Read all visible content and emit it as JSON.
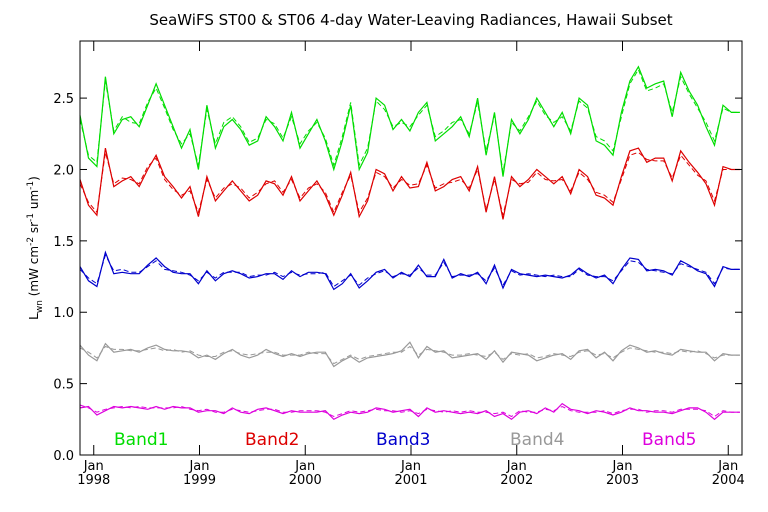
{
  "chart_data": {
    "type": "line",
    "title": "SeaWiFS ST00 & ST06 4-day Water-Leaving Radiances, Hawaii Subset",
    "ylabel": {
      "main": "L",
      "sub": "wn",
      "units_open": " (mW cm",
      "exp1": "-2",
      "mid": " sr",
      "exp2": "-1",
      "um": " um",
      "exp3": "-1",
      "units_close": ")"
    },
    "xlim": [
      1997.87,
      2004.13
    ],
    "ylim": [
      0.0,
      2.9
    ],
    "y_ticks": [
      {
        "v": 0.0,
        "label": "0.0"
      },
      {
        "v": 0.5,
        "label": "0.5"
      },
      {
        "v": 1.0,
        "label": "1.0"
      },
      {
        "v": 1.5,
        "label": "1.5"
      },
      {
        "v": 2.0,
        "label": "2.0"
      },
      {
        "v": 2.5,
        "label": "2.5"
      }
    ],
    "x_ticks": [
      {
        "v": 1998.0,
        "month": "Jan",
        "year": "1998"
      },
      {
        "v": 1999.0,
        "month": "Jan",
        "year": "1999"
      },
      {
        "v": 2000.0,
        "month": "Jan",
        "year": "2000"
      },
      {
        "v": 2001.0,
        "month": "Jan",
        "year": "2001"
      },
      {
        "v": 2002.0,
        "month": "Jan",
        "year": "2002"
      },
      {
        "v": 2003.0,
        "month": "Jan",
        "year": "2003"
      },
      {
        "v": 2004.0,
        "month": "Jan",
        "year": "2004"
      }
    ],
    "x": [
      1997.87,
      1997.95,
      1998.03,
      1998.11,
      1998.19,
      1998.27,
      1998.35,
      1998.43,
      1998.51,
      1998.59,
      1998.67,
      1998.75,
      1998.83,
      1998.91,
      1998.99,
      1999.07,
      1999.15,
      1999.23,
      1999.31,
      1999.39,
      1999.47,
      1999.55,
      1999.63,
      1999.71,
      1999.79,
      1999.87,
      1999.95,
      2000.03,
      2000.11,
      2000.19,
      2000.27,
      2000.35,
      2000.43,
      2000.51,
      2000.59,
      2000.67,
      2000.75,
      2000.83,
      2000.91,
      2000.99,
      2001.07,
      2001.15,
      2001.23,
      2001.31,
      2001.39,
      2001.47,
      2001.55,
      2001.63,
      2001.71,
      2001.79,
      2001.87,
      2001.95,
      2002.03,
      2002.11,
      2002.19,
      2002.27,
      2002.35,
      2002.43,
      2002.51,
      2002.59,
      2002.67,
      2002.75,
      2002.83,
      2002.91,
      2002.99,
      2003.07,
      2003.15,
      2003.23,
      2003.31,
      2003.39,
      2003.47,
      2003.55,
      2003.63,
      2003.71,
      2003.79,
      2003.87,
      2003.95,
      2004.03,
      2004.11
    ],
    "series": [
      {
        "name": "Band1",
        "color": "#00dd00",
        "st00": [
          2.38,
          2.08,
          2.02,
          2.65,
          2.25,
          2.35,
          2.37,
          2.3,
          2.45,
          2.6,
          2.45,
          2.3,
          2.15,
          2.28,
          2.0,
          2.45,
          2.15,
          2.3,
          2.35,
          2.28,
          2.17,
          2.2,
          2.37,
          2.3,
          2.2,
          2.4,
          2.15,
          2.25,
          2.35,
          2.2,
          2.0,
          2.2,
          2.45,
          2.0,
          2.12,
          2.5,
          2.45,
          2.28,
          2.35,
          2.27,
          2.4,
          2.47,
          2.2,
          2.25,
          2.3,
          2.37,
          2.23,
          2.5,
          2.1,
          2.4,
          1.95,
          2.35,
          2.25,
          2.35,
          2.5,
          2.4,
          2.3,
          2.4,
          2.25,
          2.5,
          2.45,
          2.2,
          2.17,
          2.1,
          2.4,
          2.62,
          2.72,
          2.57,
          2.6,
          2.62,
          2.37,
          2.68,
          2.55,
          2.45,
          2.3,
          2.17,
          2.45,
          2.4,
          2.4
        ],
        "st06": [
          2.35,
          2.1,
          2.05,
          2.62,
          2.27,
          2.37,
          2.33,
          2.32,
          2.47,
          2.57,
          2.43,
          2.28,
          2.18,
          2.25,
          2.03,
          2.42,
          2.18,
          2.33,
          2.37,
          2.3,
          2.19,
          2.22,
          2.35,
          2.32,
          2.22,
          2.37,
          2.18,
          2.27,
          2.33,
          2.22,
          2.03,
          2.23,
          2.47,
          2.03,
          2.15,
          2.48,
          2.42,
          2.3,
          2.33,
          2.3,
          2.38,
          2.45,
          2.23,
          2.27,
          2.33,
          2.35,
          2.25,
          2.47,
          2.13,
          2.38,
          1.98,
          2.33,
          2.27,
          2.37,
          2.48,
          2.38,
          2.33,
          2.37,
          2.27,
          2.48,
          2.43,
          2.23,
          2.2,
          2.13,
          2.37,
          2.6,
          2.7,
          2.55,
          2.57,
          2.6,
          2.4,
          2.65,
          2.53,
          2.43,
          2.33,
          2.2,
          2.43,
          2.4,
          2.4
        ]
      },
      {
        "name": "Band2",
        "color": "#dd0000",
        "st00": [
          1.93,
          1.75,
          1.68,
          2.15,
          1.88,
          1.92,
          1.95,
          1.88,
          2.0,
          2.1,
          1.95,
          1.88,
          1.8,
          1.88,
          1.67,
          1.95,
          1.78,
          1.85,
          1.92,
          1.85,
          1.78,
          1.82,
          1.92,
          1.9,
          1.82,
          1.95,
          1.78,
          1.85,
          1.92,
          1.82,
          1.68,
          1.82,
          1.98,
          1.67,
          1.78,
          2.0,
          1.97,
          1.85,
          1.95,
          1.87,
          1.88,
          2.05,
          1.85,
          1.88,
          1.93,
          1.95,
          1.85,
          2.02,
          1.7,
          1.95,
          1.65,
          1.95,
          1.88,
          1.93,
          2.0,
          1.95,
          1.9,
          1.95,
          1.83,
          2.0,
          1.95,
          1.82,
          1.8,
          1.75,
          1.95,
          2.13,
          2.15,
          2.05,
          2.08,
          2.08,
          1.92,
          2.13,
          2.05,
          1.98,
          1.9,
          1.75,
          2.02,
          2.0,
          2.0
        ],
        "st06": [
          1.9,
          1.77,
          1.7,
          2.12,
          1.9,
          1.94,
          1.93,
          1.9,
          2.02,
          2.08,
          1.93,
          1.86,
          1.82,
          1.85,
          1.7,
          1.93,
          1.8,
          1.87,
          1.9,
          1.87,
          1.8,
          1.84,
          1.9,
          1.92,
          1.84,
          1.93,
          1.8,
          1.87,
          1.9,
          1.84,
          1.7,
          1.84,
          1.96,
          1.7,
          1.8,
          1.98,
          1.95,
          1.87,
          1.93,
          1.89,
          1.9,
          2.03,
          1.87,
          1.9,
          1.91,
          1.93,
          1.87,
          2.0,
          1.72,
          1.93,
          1.68,
          1.93,
          1.9,
          1.91,
          1.98,
          1.93,
          1.92,
          1.93,
          1.85,
          1.98,
          1.93,
          1.84,
          1.82,
          1.77,
          1.93,
          2.1,
          2.12,
          2.07,
          2.06,
          2.06,
          1.94,
          2.1,
          2.03,
          1.96,
          1.92,
          1.78,
          2.0,
          2.0,
          2.0
        ]
      },
      {
        "name": "Band3",
        "color": "#0000cc",
        "st00": [
          1.32,
          1.22,
          1.18,
          1.42,
          1.27,
          1.28,
          1.27,
          1.27,
          1.33,
          1.38,
          1.32,
          1.28,
          1.27,
          1.27,
          1.2,
          1.29,
          1.22,
          1.27,
          1.29,
          1.27,
          1.24,
          1.25,
          1.27,
          1.27,
          1.23,
          1.29,
          1.25,
          1.28,
          1.28,
          1.27,
          1.16,
          1.2,
          1.27,
          1.17,
          1.22,
          1.28,
          1.3,
          1.24,
          1.28,
          1.25,
          1.33,
          1.25,
          1.25,
          1.37,
          1.24,
          1.27,
          1.25,
          1.28,
          1.2,
          1.33,
          1.17,
          1.3,
          1.27,
          1.26,
          1.25,
          1.26,
          1.25,
          1.24,
          1.26,
          1.31,
          1.27,
          1.24,
          1.26,
          1.2,
          1.3,
          1.38,
          1.37,
          1.29,
          1.3,
          1.29,
          1.26,
          1.36,
          1.33,
          1.29,
          1.27,
          1.18,
          1.32,
          1.3,
          1.3
        ],
        "st06": [
          1.3,
          1.24,
          1.2,
          1.4,
          1.29,
          1.3,
          1.28,
          1.28,
          1.32,
          1.36,
          1.3,
          1.29,
          1.28,
          1.26,
          1.22,
          1.28,
          1.24,
          1.28,
          1.28,
          1.28,
          1.25,
          1.26,
          1.26,
          1.28,
          1.25,
          1.28,
          1.26,
          1.27,
          1.27,
          1.28,
          1.18,
          1.22,
          1.26,
          1.19,
          1.24,
          1.27,
          1.29,
          1.25,
          1.27,
          1.26,
          1.31,
          1.26,
          1.26,
          1.35,
          1.25,
          1.26,
          1.26,
          1.27,
          1.22,
          1.31,
          1.19,
          1.29,
          1.26,
          1.27,
          1.26,
          1.25,
          1.26,
          1.25,
          1.25,
          1.3,
          1.26,
          1.25,
          1.25,
          1.22,
          1.29,
          1.36,
          1.35,
          1.3,
          1.29,
          1.28,
          1.27,
          1.34,
          1.32,
          1.3,
          1.28,
          1.2,
          1.31,
          1.3,
          1.3
        ]
      },
      {
        "name": "Band4",
        "color": "#999999",
        "st00": [
          0.77,
          0.7,
          0.66,
          0.78,
          0.72,
          0.73,
          0.74,
          0.72,
          0.75,
          0.77,
          0.74,
          0.73,
          0.73,
          0.72,
          0.68,
          0.7,
          0.67,
          0.71,
          0.74,
          0.7,
          0.68,
          0.7,
          0.74,
          0.71,
          0.69,
          0.71,
          0.69,
          0.71,
          0.72,
          0.72,
          0.62,
          0.66,
          0.69,
          0.65,
          0.68,
          0.69,
          0.7,
          0.71,
          0.73,
          0.79,
          0.68,
          0.76,
          0.72,
          0.73,
          0.68,
          0.69,
          0.7,
          0.71,
          0.67,
          0.73,
          0.65,
          0.72,
          0.71,
          0.7,
          0.66,
          0.68,
          0.7,
          0.71,
          0.67,
          0.73,
          0.74,
          0.68,
          0.72,
          0.66,
          0.73,
          0.77,
          0.75,
          0.72,
          0.73,
          0.71,
          0.7,
          0.74,
          0.73,
          0.72,
          0.72,
          0.66,
          0.71,
          0.7,
          0.7
        ],
        "st06": [
          0.75,
          0.72,
          0.68,
          0.76,
          0.74,
          0.74,
          0.73,
          0.73,
          0.74,
          0.75,
          0.73,
          0.74,
          0.72,
          0.73,
          0.7,
          0.69,
          0.69,
          0.72,
          0.73,
          0.71,
          0.7,
          0.71,
          0.72,
          0.72,
          0.7,
          0.7,
          0.7,
          0.72,
          0.71,
          0.71,
          0.64,
          0.67,
          0.7,
          0.67,
          0.69,
          0.7,
          0.71,
          0.72,
          0.72,
          0.76,
          0.7,
          0.74,
          0.73,
          0.72,
          0.7,
          0.7,
          0.71,
          0.7,
          0.69,
          0.72,
          0.67,
          0.71,
          0.7,
          0.71,
          0.68,
          0.69,
          0.71,
          0.7,
          0.69,
          0.72,
          0.73,
          0.7,
          0.71,
          0.68,
          0.72,
          0.75,
          0.74,
          0.73,
          0.72,
          0.72,
          0.71,
          0.73,
          0.72,
          0.73,
          0.71,
          0.68,
          0.7,
          0.7,
          0.7
        ]
      },
      {
        "name": "Band5",
        "color": "#dd00dd",
        "st00": [
          0.33,
          0.34,
          0.28,
          0.31,
          0.34,
          0.33,
          0.34,
          0.33,
          0.32,
          0.34,
          0.32,
          0.34,
          0.33,
          0.33,
          0.3,
          0.31,
          0.31,
          0.29,
          0.33,
          0.3,
          0.29,
          0.32,
          0.33,
          0.31,
          0.29,
          0.31,
          0.3,
          0.3,
          0.3,
          0.31,
          0.25,
          0.28,
          0.3,
          0.29,
          0.3,
          0.33,
          0.32,
          0.3,
          0.31,
          0.32,
          0.27,
          0.33,
          0.3,
          0.31,
          0.3,
          0.29,
          0.3,
          0.29,
          0.31,
          0.27,
          0.29,
          0.25,
          0.3,
          0.31,
          0.29,
          0.33,
          0.3,
          0.36,
          0.32,
          0.31,
          0.29,
          0.31,
          0.3,
          0.28,
          0.3,
          0.33,
          0.31,
          0.31,
          0.3,
          0.3,
          0.29,
          0.31,
          0.33,
          0.33,
          0.3,
          0.25,
          0.3,
          0.3,
          0.3
        ],
        "st06": [
          0.35,
          0.33,
          0.3,
          0.32,
          0.33,
          0.34,
          0.33,
          0.34,
          0.33,
          0.33,
          0.33,
          0.33,
          0.34,
          0.32,
          0.31,
          0.32,
          0.3,
          0.3,
          0.32,
          0.31,
          0.3,
          0.31,
          0.32,
          0.32,
          0.3,
          0.3,
          0.31,
          0.31,
          0.31,
          0.3,
          0.27,
          0.29,
          0.31,
          0.3,
          0.31,
          0.32,
          0.31,
          0.31,
          0.3,
          0.31,
          0.29,
          0.32,
          0.31,
          0.3,
          0.31,
          0.3,
          0.31,
          0.3,
          0.3,
          0.29,
          0.3,
          0.27,
          0.31,
          0.3,
          0.3,
          0.32,
          0.31,
          0.34,
          0.31,
          0.3,
          0.3,
          0.3,
          0.31,
          0.29,
          0.31,
          0.32,
          0.32,
          0.3,
          0.31,
          0.31,
          0.3,
          0.32,
          0.32,
          0.32,
          0.31,
          0.27,
          0.31,
          0.3,
          0.3
        ]
      }
    ]
  }
}
